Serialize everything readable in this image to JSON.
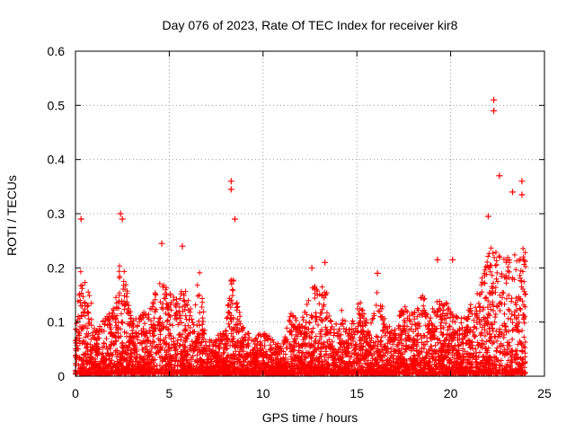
{
  "chart_data": {
    "type": "scatter",
    "title": "Day 076 of 2023, Rate Of TEC Index for receiver kir8",
    "xlabel": "GPS time / hours",
    "ylabel": "ROTI / TECUs",
    "xlim": [
      0,
      25
    ],
    "ylim": [
      0,
      0.6
    ],
    "xticks": [
      "0",
      "5",
      "10",
      "15",
      "20",
      "25"
    ],
    "yticks": [
      "0",
      "0.1",
      "0.2",
      "0.3",
      "0.4",
      "0.5",
      "0.6"
    ],
    "grid": true,
    "marker": "plus",
    "color": "#ff0000",
    "outliers": [
      {
        "x": 0.3,
        "y": 0.29
      },
      {
        "x": 2.4,
        "y": 0.3
      },
      {
        "x": 2.5,
        "y": 0.29
      },
      {
        "x": 4.6,
        "y": 0.245
      },
      {
        "x": 5.7,
        "y": 0.24
      },
      {
        "x": 8.3,
        "y": 0.36
      },
      {
        "x": 8.3,
        "y": 0.345
      },
      {
        "x": 8.5,
        "y": 0.29
      },
      {
        "x": 12.6,
        "y": 0.2
      },
      {
        "x": 13.3,
        "y": 0.21
      },
      {
        "x": 16.1,
        "y": 0.19
      },
      {
        "x": 19.3,
        "y": 0.215
      },
      {
        "x": 20.1,
        "y": 0.215
      },
      {
        "x": 22.0,
        "y": 0.295
      },
      {
        "x": 22.3,
        "y": 0.51
      },
      {
        "x": 22.3,
        "y": 0.49
      },
      {
        "x": 22.6,
        "y": 0.37
      },
      {
        "x": 23.3,
        "y": 0.34
      },
      {
        "x": 23.8,
        "y": 0.36
      },
      {
        "x": 23.8,
        "y": 0.335
      }
    ],
    "envelope": [
      [
        0.0,
        0.1
      ],
      [
        0.3,
        0.2
      ],
      [
        0.8,
        0.15
      ],
      [
        1.0,
        0.09
      ],
      [
        1.5,
        0.1
      ],
      [
        2.0,
        0.12
      ],
      [
        2.4,
        0.22
      ],
      [
        2.7,
        0.18
      ],
      [
        3.0,
        0.1
      ],
      [
        3.5,
        0.11
      ],
      [
        4.0,
        0.13
      ],
      [
        4.6,
        0.18
      ],
      [
        5.0,
        0.15
      ],
      [
        5.5,
        0.14
      ],
      [
        5.8,
        0.17
      ],
      [
        6.3,
        0.1
      ],
      [
        6.6,
        0.2
      ],
      [
        7.0,
        0.06
      ],
      [
        7.5,
        0.07
      ],
      [
        8.0,
        0.08
      ],
      [
        8.3,
        0.2
      ],
      [
        8.7,
        0.12
      ],
      [
        9.0,
        0.08
      ],
      [
        9.5,
        0.07
      ],
      [
        10.0,
        0.08
      ],
      [
        10.5,
        0.07
      ],
      [
        11.0,
        0.05
      ],
      [
        11.5,
        0.12
      ],
      [
        12.0,
        0.09
      ],
      [
        12.6,
        0.17
      ],
      [
        13.0,
        0.15
      ],
      [
        13.3,
        0.18
      ],
      [
        13.7,
        0.1
      ],
      [
        14.2,
        0.12
      ],
      [
        14.7,
        0.09
      ],
      [
        15.2,
        0.15
      ],
      [
        15.6,
        0.09
      ],
      [
        16.1,
        0.17
      ],
      [
        16.5,
        0.1
      ],
      [
        17.0,
        0.09
      ],
      [
        17.5,
        0.13
      ],
      [
        18.0,
        0.11
      ],
      [
        18.5,
        0.15
      ],
      [
        19.0,
        0.12
      ],
      [
        19.5,
        0.15
      ],
      [
        20.0,
        0.12
      ],
      [
        20.5,
        0.1
      ],
      [
        21.0,
        0.13
      ],
      [
        21.5,
        0.16
      ],
      [
        22.0,
        0.22
      ],
      [
        22.3,
        0.25
      ],
      [
        22.6,
        0.23
      ],
      [
        23.0,
        0.22
      ],
      [
        23.5,
        0.22
      ],
      [
        24.0,
        0.24
      ]
    ]
  }
}
